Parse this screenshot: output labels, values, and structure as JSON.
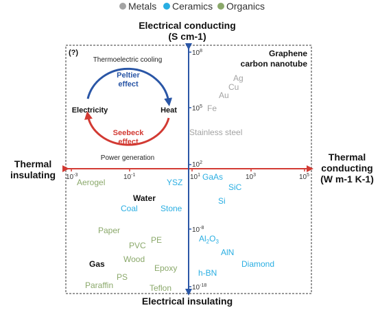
{
  "legend": [
    {
      "label": "Metals",
      "color": "#a3a3a3"
    },
    {
      "label": "Ceramics",
      "color": "#29aee2"
    },
    {
      "label": "Organics",
      "color": "#8aa86a"
    }
  ],
  "colors": {
    "vertical_axis": "#2a56a6",
    "horizontal_axis": "#d23a33",
    "peltier": "#2a56a6",
    "seebeck": "#d23a33"
  },
  "axes": {
    "top": {
      "line1": "Electrical conducting",
      "line2": "(S cm-1)"
    },
    "bottom": "Electrical insulating",
    "left": {
      "line1": "Thermal",
      "line2": "insulating"
    },
    "right": {
      "line1": "Thermal",
      "line2": "conducting",
      "line3": "(W m-1 K-1)"
    }
  },
  "ticks": {
    "vertical": [
      {
        "base": "10",
        "exp": "8"
      },
      {
        "base": "10",
        "exp": "5"
      },
      {
        "base": "10",
        "exp": "2"
      },
      {
        "base": "10",
        "exp": "-8"
      },
      {
        "base": "10",
        "exp": "-18"
      }
    ],
    "horizontal": [
      {
        "base": "10",
        "exp": "-3"
      },
      {
        "base": "10",
        "exp": "-1"
      },
      {
        "base": "10",
        "exp": "1"
      },
      {
        "base": "10",
        "exp": "3"
      },
      {
        "base": "10",
        "exp": "5"
      }
    ]
  },
  "inset": {
    "marker": "(?)",
    "cooling": "Thermoelectric cooling",
    "peltier": {
      "line1": "Peltier",
      "line2": "effect"
    },
    "seebeck": {
      "line1": "Seebeck",
      "line2": "effect"
    },
    "electricity": "Electricity",
    "heat": "Heat",
    "generation": "Power generation"
  },
  "graphene": {
    "line1": "Graphene",
    "line2": "carbon nanotube"
  },
  "materials": {
    "metals": [
      "Ag",
      "Cu",
      "Au",
      "Fe",
      "Stainless steel"
    ],
    "ceramics": [
      "GaAs",
      "SiC",
      "Si",
      "YSZ",
      "Coal",
      "Stone",
      "AlN",
      "Diamond",
      "h-BN"
    ],
    "al2o3": {
      "prefix": "Al",
      "sub1": "2",
      "mid": "O",
      "sub2": "3"
    },
    "organics": [
      "Aerogel",
      "Paper",
      "PE",
      "PVC",
      "Wood",
      "Epoxy",
      "PS",
      "Paraffin",
      "Teflon"
    ],
    "other": [
      "Water",
      "Gas"
    ]
  }
}
